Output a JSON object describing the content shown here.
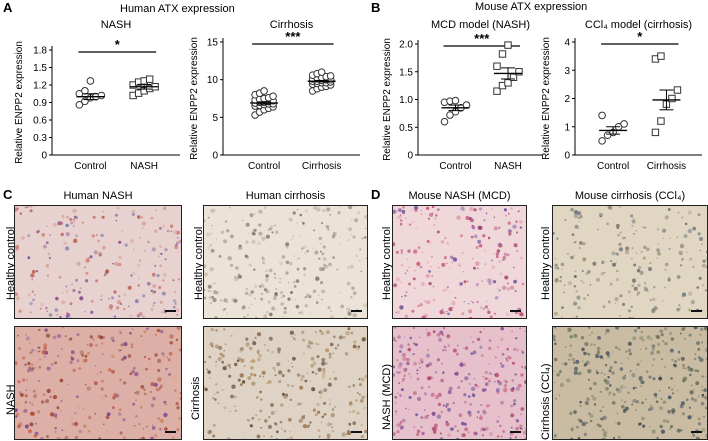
{
  "panels": {
    "A": {
      "letter": "A",
      "title": "Human ATX expression"
    },
    "B": {
      "letter": "B",
      "title": "Mouse ATX expression"
    },
    "C": {
      "letter": "C"
    },
    "D": {
      "letter": "D"
    }
  },
  "chart_data": [
    {
      "id": "nash-human",
      "type": "scatter",
      "title": "NASH",
      "ylabel": "Relative ENPP2 expression",
      "categories": [
        "Control",
        "NASH"
      ],
      "ylim": [
        0,
        1.8
      ],
      "yticks": [
        "0",
        "0.3",
        "0.6",
        "0.9",
        "1.2",
        "1.5",
        "1.8"
      ],
      "significance": "*",
      "series": [
        {
          "values": [
            0.86,
            0.92,
            0.98,
            1.0,
            1.02,
            1.05,
            1.1,
            1.27
          ],
          "mean": 1.0,
          "sem": 0.05
        },
        {
          "values": [
            1.02,
            1.06,
            1.1,
            1.14,
            1.17,
            1.2,
            1.25,
            1.27,
            1.3
          ],
          "mean": 1.17,
          "sem": 0.04
        }
      ]
    },
    {
      "id": "cirrhosis-human",
      "type": "scatter",
      "title": "Cirrhosis",
      "ylabel": "Relative ENPP2 expression",
      "categories": [
        "Control",
        "Cirrhosis"
      ],
      "ylim": [
        0,
        15
      ],
      "yticks": [
        "0",
        "5",
        "10",
        "15"
      ],
      "significance": "***",
      "series": [
        {
          "values": [
            5.3,
            5.7,
            6.0,
            6.2,
            6.4,
            6.5,
            6.6,
            6.7,
            6.8,
            6.8,
            6.9,
            7.0,
            7.0,
            7.1,
            7.2,
            7.3,
            7.4,
            7.5,
            7.6,
            7.8,
            8.0,
            8.2,
            8.5
          ],
          "mean": 6.9,
          "sem": 0.15
        },
        {
          "values": [
            8.5,
            8.8,
            9.0,
            9.1,
            9.3,
            9.4,
            9.5,
            9.6,
            9.6,
            9.7,
            9.8,
            9.8,
            9.9,
            10.0,
            10.0,
            10.1,
            10.2,
            10.3,
            10.4,
            10.5,
            10.6,
            10.8,
            11.0
          ],
          "mean": 9.8,
          "sem": 0.1
        }
      ]
    },
    {
      "id": "mcd-mouse",
      "type": "scatter",
      "title": "MCD model (NASH)",
      "ylabel": "Relative ENPP2 expression",
      "categories": [
        "Control",
        "NASH"
      ],
      "ylim": [
        0,
        2.0
      ],
      "yticks": [
        "0",
        "0.5",
        "1.0",
        "1.5",
        "2.0"
      ],
      "significance": "***",
      "series": [
        {
          "values": [
            0.6,
            0.72,
            0.78,
            0.85,
            0.9,
            0.95,
            0.97,
            0.98
          ],
          "mean": 0.85,
          "sem": 0.05
        },
        {
          "values": [
            1.15,
            1.25,
            1.3,
            1.4,
            1.5,
            1.6,
            1.82,
            1.98
          ],
          "mean": 1.47,
          "sem": 0.1
        }
      ]
    },
    {
      "id": "ccl4-mouse",
      "type": "scatter",
      "title": "CCl₄ model (cirrhosis)",
      "ylabel": "Relative ENPP2 expression",
      "categories": [
        "Control",
        "Cirrhosis"
      ],
      "ylim": [
        0,
        4
      ],
      "yticks": [
        "0",
        "1",
        "2",
        "3",
        "4"
      ],
      "significance": "*",
      "series": [
        {
          "values": [
            0.5,
            0.7,
            0.8,
            1.0,
            1.1,
            1.4
          ],
          "mean": 0.87,
          "sem": 0.13
        },
        {
          "values": [
            0.8,
            1.2,
            1.8,
            2.0,
            2.3,
            3.4,
            3.5
          ],
          "mean": 1.95,
          "sem": 0.35
        }
      ]
    }
  ],
  "histology": {
    "human_nash_title": "Human NASH",
    "human_cirrhosis_title": "Human cirrhosis",
    "mouse_nash_title": "Mouse NASH (MCD)",
    "mouse_cirrhosis_title": "Mouse cirrhosis (CCl₄)",
    "labels": {
      "healthy_control": "Healthy control",
      "nash": "NASH",
      "cirrhosis": "Cirrhosis",
      "nash_mcd": "NASH (MCD)",
      "cirrhosis_ccl4": "Cirrhosis (CCl₄)"
    }
  }
}
